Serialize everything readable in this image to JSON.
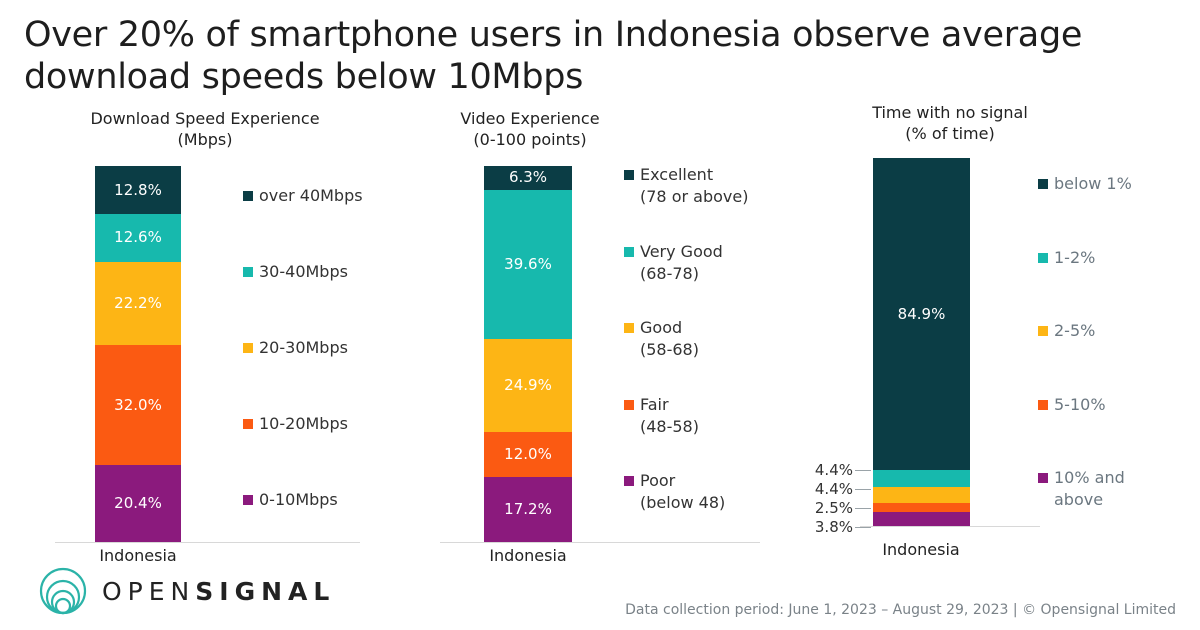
{
  "title_line1": "Over 20% of smartphone users in Indonesia observe average",
  "title_line2": "download speeds below 10Mbps",
  "colors": {
    "c1": "#0b3d45",
    "c2": "#17b9ad",
    "c3": "#fdb515",
    "c4": "#fb5a12",
    "c5": "#8b1a7d"
  },
  "chart_data": [
    {
      "type": "bar",
      "stacked": true,
      "title_line1": "Download Speed Experience",
      "title_line2": "(Mbps)",
      "category": "Indonesia",
      "series": [
        {
          "name": "over 40Mbps",
          "value": 12.8,
          "label": "12.8%"
        },
        {
          "name": "30-40Mbps",
          "value": 12.6,
          "label": "12.6%"
        },
        {
          "name": "20-30Mbps",
          "value": 22.2,
          "label": "22.2%"
        },
        {
          "name": "10-20Mbps",
          "value": 32.0,
          "label": "32.0%"
        },
        {
          "name": "0-10Mbps",
          "value": 20.4,
          "label": "20.4%"
        }
      ]
    },
    {
      "type": "bar",
      "stacked": true,
      "title_line1": "Video Experience",
      "title_line2": "(0-100 points)",
      "category": "Indonesia",
      "series": [
        {
          "name": "Excellent",
          "sub": "(78 or above)",
          "value": 6.3,
          "label": "6.3%"
        },
        {
          "name": "Very Good",
          "sub": "(68-78)",
          "value": 39.6,
          "label": "39.6%"
        },
        {
          "name": "Good",
          "sub": "(58-68)",
          "value": 24.9,
          "label": "24.9%"
        },
        {
          "name": "Fair",
          "sub": "(48-58)",
          "value": 12.0,
          "label": "12.0%"
        },
        {
          "name": "Poor",
          "sub": "(below 48)",
          "value": 17.2,
          "label": "17.2%"
        }
      ]
    },
    {
      "type": "bar",
      "stacked": true,
      "title_line1": "Time with no signal",
      "title_line2": "(% of time)",
      "category": "Indonesia",
      "series": [
        {
          "name": "below 1%",
          "value": 84.9,
          "label": "84.9%"
        },
        {
          "name": "1-2%",
          "value": 4.4,
          "label": "4.4%"
        },
        {
          "name": "2-5%",
          "value": 4.4,
          "label": "4.4%"
        },
        {
          "name": "5-10%",
          "value": 2.5,
          "label": "2.5%"
        },
        {
          "name": "10% and",
          "sub": "above",
          "value": 3.8,
          "label": "3.8%"
        }
      ]
    }
  ],
  "logo": {
    "open": "OPEN",
    "signal": "SIGNAL"
  },
  "footer": "Data collection period: June 1, 2023 – August 29, 2023 | © Opensignal Limited"
}
